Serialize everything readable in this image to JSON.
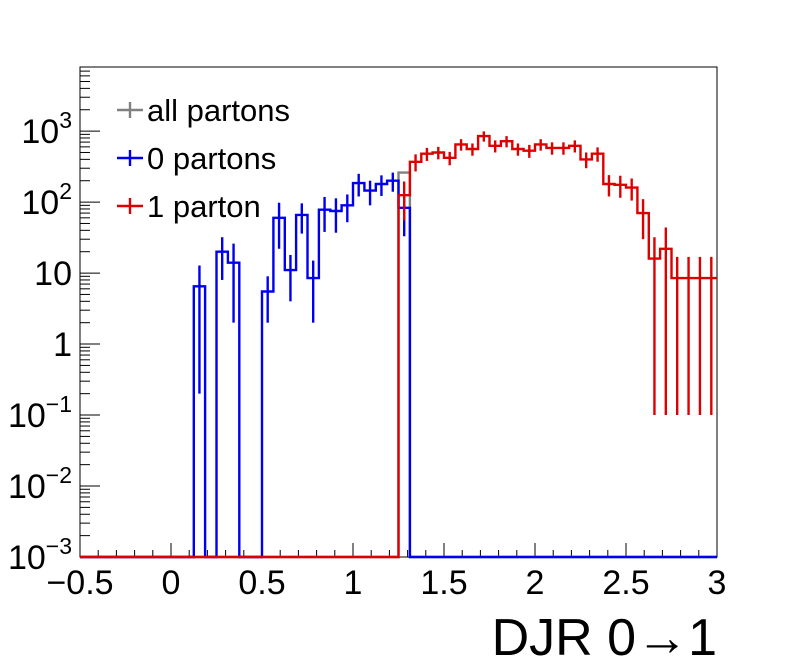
{
  "chart_data": {
    "type": "line",
    "title": "",
    "xlabel": "DJR 0→1",
    "ylabel": "",
    "xlim": [
      -0.5,
      3.0
    ],
    "ylim": [
      0.001,
      8000
    ],
    "y_scale": "log",
    "bin_width": 0.0625,
    "x_ticks": [
      "−0.5",
      "0",
      "0.5",
      "1",
      "1.5",
      "2",
      "2.5",
      "3"
    ],
    "x_tick_values": [
      -0.5,
      0,
      0.5,
      1,
      1.5,
      2,
      2.5,
      3
    ],
    "y_ticks": [
      {
        "value": 0.001,
        "base": "10",
        "exp": "−3"
      },
      {
        "value": 0.01,
        "base": "10",
        "exp": "−2"
      },
      {
        "value": 0.1,
        "base": "10",
        "exp": "−1"
      },
      {
        "value": 1,
        "base": "1",
        "exp": ""
      },
      {
        "value": 10,
        "base": "10",
        "exp": ""
      },
      {
        "value": 100,
        "base": "10",
        "exp": "2"
      },
      {
        "value": 1000,
        "base": "10",
        "exp": "3"
      }
    ],
    "legend": {
      "placement": "top-left"
    },
    "series": [
      {
        "name": "all partons",
        "color": "#808080",
        "x_start": [
          -0.5,
          1.25
        ],
        "values": [
          0.001,
          260
        ],
        "errors": [
          0,
          0
        ]
      },
      {
        "name": "0 partons",
        "color": "#0000ee",
        "x_start": [
          -0.5,
          0.125,
          0.1875,
          0.25,
          0.3125,
          0.375,
          0.4375,
          0.5,
          0.5625,
          0.625,
          0.6875,
          0.75,
          0.8125,
          0.875,
          0.9375,
          1.0,
          1.0625,
          1.125,
          1.1875,
          1.25,
          1.3125
        ],
        "values": [
          0.001,
          6.5,
          0.001,
          20,
          14,
          0.001,
          0.001,
          5.5,
          60,
          11,
          66,
          8.5,
          78,
          75,
          90,
          185,
          145,
          180,
          200,
          83,
          0.001
        ],
        "errors": [
          0,
          6.3,
          0,
          12,
          12,
          0,
          0,
          3.5,
          38,
          7,
          30,
          6.5,
          40,
          38,
          38,
          65,
          55,
          58,
          60,
          50,
          0
        ]
      },
      {
        "name": "1 parton",
        "color": "#dd0000",
        "x_start": [
          -0.5,
          1.25,
          1.3125,
          1.375,
          1.4375,
          1.5,
          1.5625,
          1.625,
          1.6875,
          1.75,
          1.8125,
          1.875,
          1.9375,
          2.0,
          2.0625,
          2.125,
          2.1875,
          2.25,
          2.3125,
          2.375,
          2.4375,
          2.5,
          2.5625,
          2.625,
          2.6875,
          2.75,
          2.8125,
          2.875,
          2.9375
        ],
        "values": [
          0.001,
          125,
          370,
          480,
          500,
          420,
          650,
          560,
          850,
          620,
          720,
          560,
          530,
          650,
          580,
          580,
          620,
          400,
          480,
          180,
          175,
          160,
          70,
          16,
          22,
          8.5,
          8.5,
          8.5,
          8.5
        ],
        "errors": [
          0,
          70,
          100,
          100,
          100,
          90,
          120,
          110,
          140,
          120,
          130,
          110,
          110,
          120,
          115,
          115,
          120,
          100,
          110,
          60,
          60,
          55,
          40,
          15.9,
          21.9,
          8.4,
          8.4,
          8.4,
          8.4
        ]
      }
    ]
  }
}
